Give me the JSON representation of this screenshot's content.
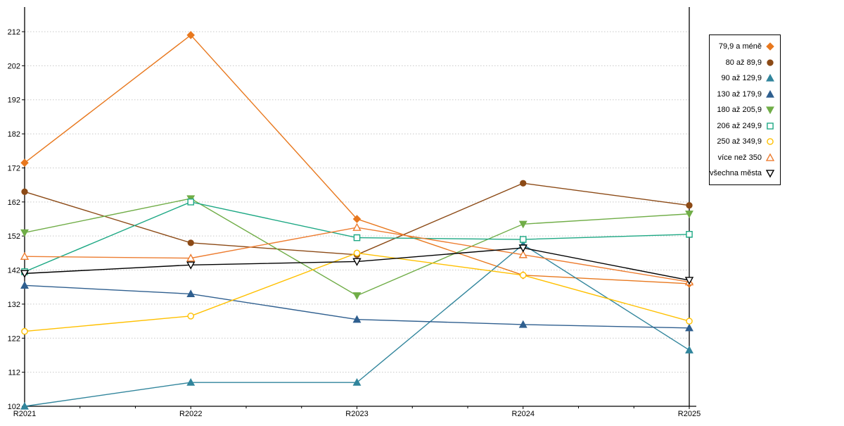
{
  "chart_data": {
    "type": "line",
    "title": "",
    "xlabel": "",
    "ylabel": "",
    "categories": [
      "R2021",
      "R2022",
      "R2023",
      "R2024",
      "R2025"
    ],
    "y_axis": {
      "min": 102,
      "max": 212,
      "step": 10,
      "ticks": [
        102,
        112,
        122,
        132,
        142,
        152,
        162,
        172,
        182,
        192,
        202,
        212
      ]
    },
    "grid": "dotted horizontal",
    "legend_position": "right",
    "series": [
      {
        "name": "79,9 a méně",
        "color": "#E8781E",
        "marker": "diamond",
        "marker_fill": "filled",
        "values": [
          173.5,
          211,
          157,
          140.5,
          138
        ]
      },
      {
        "name": "80 až 89,9",
        "color": "#8C4A16",
        "marker": "circle",
        "marker_fill": "filled",
        "values": [
          165,
          150,
          146.5,
          167.5,
          161
        ]
      },
      {
        "name": "90 až 129,9",
        "color": "#31859C",
        "marker": "triangle-up",
        "marker_fill": "filled",
        "values": [
          102,
          109,
          109,
          149.5,
          118.5
        ]
      },
      {
        "name": "130 až 179,9",
        "color": "#2F5F8F",
        "marker": "triangle-up",
        "marker_fill": "filled",
        "values": [
          137.5,
          135,
          127.5,
          126,
          125
        ]
      },
      {
        "name": "180 až 205,9",
        "color": "#70AD47",
        "marker": "triangle-down",
        "marker_fill": "filled",
        "values": [
          153,
          163,
          134.5,
          155.5,
          158.5
        ]
      },
      {
        "name": "206 až 249,9",
        "color": "#1DA884",
        "marker": "square",
        "marker_fill": "open",
        "values": [
          141.5,
          162,
          151.5,
          151,
          152.5
        ]
      },
      {
        "name": "250 až 349,9",
        "color": "#FFC000",
        "marker": "circle",
        "marker_fill": "open",
        "values": [
          124,
          128.5,
          147,
          140.5,
          127
        ]
      },
      {
        "name": "více než 350",
        "color": "#ED7D31",
        "marker": "triangle-up",
        "marker_fill": "open",
        "values": [
          146,
          145.5,
          154.5,
          146.5,
          138.5
        ]
      },
      {
        "name": "všechna města",
        "color": "#000000",
        "marker": "triangle-down",
        "marker_fill": "open",
        "values": [
          141,
          143.5,
          144.5,
          148.5,
          139
        ]
      }
    ],
    "colors": {
      "axis": "#000000",
      "gridline": "#c8c8c8",
      "background": "#ffffff",
      "legend_border": "#000000"
    }
  }
}
